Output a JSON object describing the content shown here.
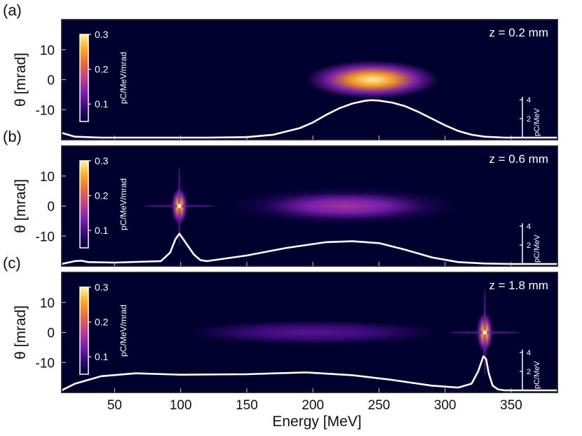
{
  "chart_data": {
    "type": "heatmap",
    "xlabel": "Energy [MeV]",
    "ylabel": "θ [mrad]",
    "xlim": [
      10,
      385
    ],
    "ylim": [
      -20,
      20
    ],
    "x_ticks": [
      50,
      100,
      150,
      200,
      250,
      300,
      350
    ],
    "y_ticks": [
      10,
      0,
      -10
    ],
    "colormap": [
      "#00002e",
      "#3b0a7a",
      "#7d20b0",
      "#c0408a",
      "#ec6a3a",
      "#fba91e",
      "#fff4a0"
    ],
    "colorbar": {
      "title": "pC/MeV/mrad",
      "ticks": [
        0.1,
        0.2,
        0.3
      ],
      "range": [
        0.05,
        0.3
      ]
    },
    "spectrum_axis": {
      "title": "pC/MeV",
      "ticks": [
        2,
        4
      ]
    },
    "panels": [
      {
        "label": "(a)",
        "z_label": "z =   0.2 mm",
        "blobs": [
          {
            "x": 245,
            "y": 0,
            "sx": 28,
            "sy": 3.6,
            "peak": 0.3
          }
        ],
        "spectrum": {
          "x": [
            10,
            20,
            40,
            80,
            120,
            150,
            170,
            190,
            200,
            210,
            220,
            230,
            240,
            245,
            250,
            260,
            270,
            280,
            290,
            300,
            310,
            320,
            330,
            345,
            385
          ],
          "y": [
            0.5,
            0.1,
            0,
            0,
            0,
            0.05,
            0.3,
            1.0,
            1.6,
            2.4,
            3.1,
            3.6,
            3.9,
            3.95,
            3.9,
            3.7,
            3.3,
            2.7,
            2.0,
            1.3,
            0.7,
            0.3,
            0.1,
            0,
            0
          ]
        }
      },
      {
        "label": "(b)",
        "z_label": "z =   0.6 mm",
        "blobs": [
          {
            "x": 225,
            "y": 0,
            "sx": 50,
            "sy": 3.6,
            "peak": 0.16
          },
          {
            "x": 99,
            "y": 0,
            "sx": 3.5,
            "sy": 3.5,
            "peak": 0.3
          }
        ],
        "spectrum": {
          "x": [
            10,
            20,
            25,
            30,
            50,
            85,
            92,
            96,
            99,
            102,
            106,
            110,
            115,
            120,
            150,
            180,
            210,
            230,
            250,
            270,
            290,
            310,
            330,
            350,
            385
          ],
          "y": [
            0,
            0.3,
            0.35,
            0.2,
            0.15,
            0.3,
            1.2,
            2.6,
            3.2,
            2.6,
            1.8,
            1.0,
            0.4,
            0.3,
            0.9,
            1.7,
            2.3,
            2.4,
            2.2,
            1.5,
            0.7,
            0.2,
            0.05,
            0,
            0
          ]
        }
      },
      {
        "label": "(c)",
        "z_label": "z =   1.8 mm",
        "blobs": [
          {
            "x": 200,
            "y": 0,
            "sx": 80,
            "sy": 3.4,
            "peak": 0.11
          },
          {
            "x": 330,
            "y": 0,
            "sx": 3.5,
            "sy": 3.8,
            "peak": 0.3
          }
        ],
        "spectrum": {
          "x": [
            10,
            20,
            40,
            66,
            100,
            150,
            195,
            230,
            260,
            290,
            310,
            320,
            325,
            329,
            331,
            333,
            336,
            340,
            345,
            385
          ],
          "y": [
            0,
            0.7,
            1.5,
            1.8,
            1.65,
            1.7,
            1.9,
            1.6,
            1.1,
            0.5,
            0.3,
            0.7,
            2.0,
            3.6,
            3.3,
            1.8,
            0.5,
            0.1,
            0,
            0
          ]
        }
      }
    ]
  }
}
